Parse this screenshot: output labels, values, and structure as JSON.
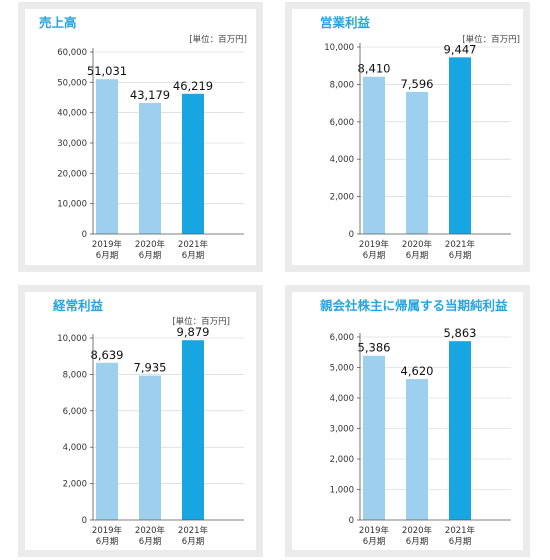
{
  "colors": {
    "title": "#2aa4de",
    "bar_previous": "#9dd0ee",
    "bar_latest": "#18a6e2",
    "panel_border": "#ebebeb"
  },
  "chart_data": [
    {
      "type": "bar",
      "title": "売上高",
      "unit": "[単位：百万円]",
      "categories": [
        "2019年|6月期",
        "2020年|6月期",
        "2021年|6月期"
      ],
      "values": [
        51031,
        43179,
        46219
      ],
      "value_labels": [
        "51,031",
        "43,179",
        "46,219"
      ],
      "ylim": [
        0,
        60000
      ],
      "yticks": [
        0,
        10000,
        20000,
        30000,
        40000,
        50000,
        60000
      ],
      "ytick_labels": [
        "0",
        "10,000",
        "20,000",
        "30,000",
        "40,000",
        "50,000",
        "60,000"
      ],
      "grid": true
    },
    {
      "type": "bar",
      "title": "営業利益",
      "unit": "[単位：百万円]",
      "categories": [
        "2019年|6月期",
        "2020年|6月期",
        "2021年|6月期"
      ],
      "values": [
        8410,
        7596,
        9447
      ],
      "value_labels": [
        "8,410",
        "7,596",
        "9,447"
      ],
      "ylim": [
        0,
        10000
      ],
      "yticks": [
        0,
        2000,
        4000,
        6000,
        8000,
        10000
      ],
      "ytick_labels": [
        "0",
        "2,000",
        "4,000",
        "6,000",
        "8,000",
        "10,000"
      ],
      "grid": true
    },
    {
      "type": "bar",
      "title": "経常利益",
      "unit": "[単位：百万円]",
      "categories": [
        "2019年|6月期",
        "2020年|6月期",
        "2021年|6月期"
      ],
      "values": [
        8639,
        7935,
        9879
      ],
      "value_labels": [
        "8,639",
        "7,935",
        "9,879"
      ],
      "ylim": [
        0,
        10000
      ],
      "yticks": [
        0,
        2000,
        4000,
        6000,
        8000,
        10000
      ],
      "ytick_labels": [
        "0",
        "2,000",
        "4,000",
        "6,000",
        "8,000",
        "10,000"
      ],
      "grid": true
    },
    {
      "type": "bar",
      "title": "親会社株主に帰属する当期純利益",
      "unit": "",
      "categories": [
        "2019年|6月期",
        "2020年|6月期",
        "2021年|6月期"
      ],
      "values": [
        5386,
        4620,
        5863
      ],
      "value_labels": [
        "5,386",
        "4,620",
        "5,863"
      ],
      "ylim": [
        0,
        6000
      ],
      "yticks": [
        0,
        1000,
        2000,
        3000,
        4000,
        5000,
        6000
      ],
      "ytick_labels": [
        "0",
        "1,000",
        "2,000",
        "3,000",
        "4,000",
        "5,000",
        "6,000"
      ],
      "grid": true
    }
  ]
}
